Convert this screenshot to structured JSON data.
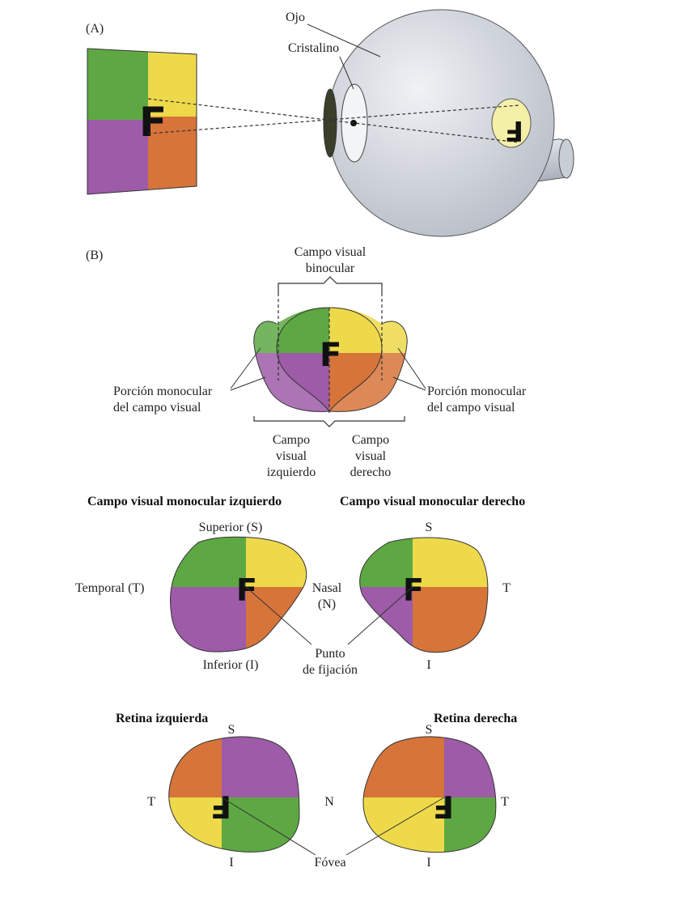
{
  "colors": {
    "green": "#5ea843",
    "yellow": "#eed94a",
    "purple": "#9d5ba8",
    "orange": "#d6743a",
    "eye": "#d7dbe2",
    "outline": "#333333"
  },
  "letter": "F",
  "panelA": {
    "tag": "(A)",
    "ojo": "Ojo",
    "cristalino": "Cristalino"
  },
  "panelB": {
    "tag": "(B)",
    "binocular": [
      "Campo visual",
      "binocular"
    ],
    "mono_left": [
      "Porción monocular",
      "del campo visual"
    ],
    "mono_right": [
      "Porción monocular",
      "del campo visual"
    ],
    "left_field": [
      "Campo",
      "visual",
      "izquierdo"
    ],
    "right_field": [
      "Campo",
      "visual",
      "derecho"
    ]
  },
  "monocular": {
    "title_left": "Campo visual monocular izquierdo",
    "title_right": "Campo visual monocular derecho",
    "superior": "Superior (S)",
    "temporal": "Temporal (T)",
    "inferior": "Inferior (I)",
    "nasal": [
      "Nasal",
      "(N)"
    ],
    "s": "S",
    "t": "T",
    "i": "I",
    "fixation": [
      "Punto",
      "de fijación"
    ]
  },
  "retina": {
    "title_left": "Retina izquierda",
    "title_right": "Retina derecha",
    "s_left": "S",
    "s_right": "S",
    "t_left": "T",
    "n": "N",
    "t_right": "T",
    "i_left": "I",
    "i_right": "I",
    "fovea": "Fóvea"
  }
}
